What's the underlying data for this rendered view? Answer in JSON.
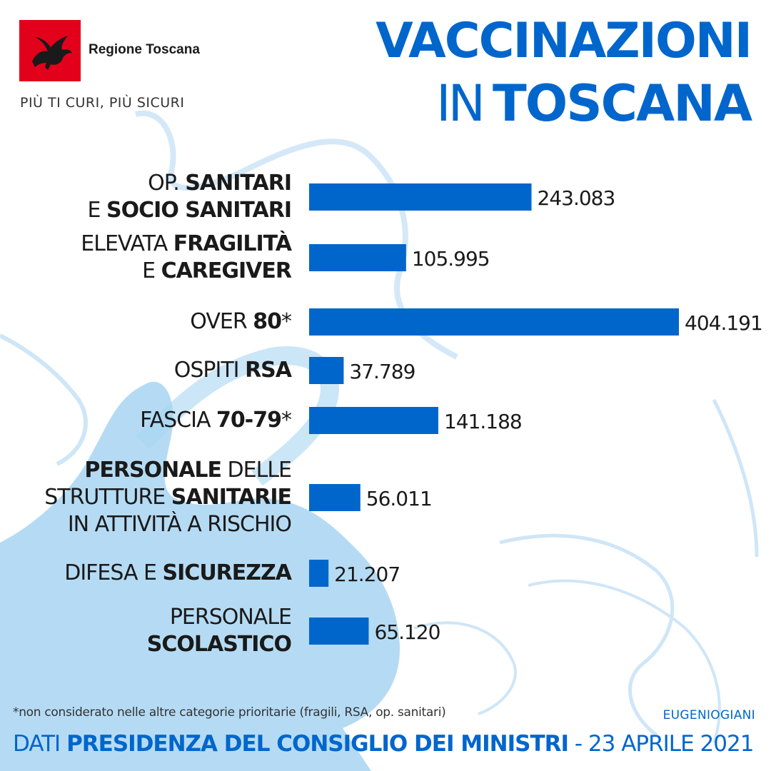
{
  "header": {
    "logo_text": "Regione Toscana",
    "tagline": "PIÙ TI CURI, PIÙ SICURI",
    "title_line1": "VACCINAZIONI",
    "title_line2_light": "IN",
    "title_line2_bold": "TOSCANA"
  },
  "categories": [
    {
      "lines": [
        [
          [
            "l",
            "OP. "
          ],
          [
            "b",
            "SANITARI"
          ]
        ],
        [
          [
            "l",
            "E "
          ],
          [
            "b",
            "SOCIO SANITARI"
          ]
        ]
      ]
    },
    {
      "lines": [
        [
          [
            "l",
            "ELEVATA "
          ],
          [
            "b",
            "FRAGILITÀ"
          ]
        ],
        [
          [
            "l",
            "E "
          ],
          [
            "b",
            "CAREGIVER"
          ]
        ]
      ]
    },
    {
      "lines": [
        [
          [
            "l",
            "OVER "
          ],
          [
            "b",
            "80"
          ],
          [
            "l",
            "*"
          ]
        ]
      ]
    },
    {
      "lines": [
        [
          [
            "l",
            "OSPITI "
          ],
          [
            "b",
            "RSA"
          ]
        ]
      ]
    },
    {
      "lines": [
        [
          [
            "l",
            "FASCIA "
          ],
          [
            "b",
            "70-79"
          ],
          [
            "l",
            "*"
          ]
        ]
      ]
    },
    {
      "lines": [
        [
          [
            "b",
            "PERSONALE"
          ],
          [
            "l",
            " DELLE"
          ]
        ],
        [
          [
            "l",
            "STRUTTURE "
          ],
          [
            "b",
            "SANITARIE"
          ]
        ],
        [
          [
            "l",
            "IN ATTIVITÀ A RISCHIO"
          ]
        ]
      ]
    },
    {
      "lines": [
        [
          [
            "l",
            "DIFESA E "
          ],
          [
            "b",
            "SICUREZZA"
          ]
        ]
      ]
    },
    {
      "lines": [
        [
          [
            "l",
            "PERSONALE"
          ]
        ],
        [
          [
            "b",
            "SCOLASTICO"
          ]
        ]
      ]
    }
  ],
  "chart_data": {
    "type": "bar",
    "orientation": "horizontal",
    "categories": [
      "OP. SANITARI E SOCIO SANITARI",
      "ELEVATA FRAGILITÀ E CAREGIVER",
      "OVER 80*",
      "OSPITI RSA",
      "FASCIA 70-79*",
      "PERSONALE DELLE STRUTTURE SANITARIE IN ATTIVITÀ A RISCHIO",
      "DIFESA E SICUREZZA",
      "PERSONALE SCOLASTICO"
    ],
    "values": [
      243083,
      105995,
      404191,
      37789,
      141188,
      56011,
      21207,
      65120
    ],
    "value_labels": [
      "243.083",
      "105.995",
      "404.191",
      "37.789",
      "141.188",
      "56.011",
      "21.207",
      "65.120"
    ],
    "bar_color": "#0066cc",
    "title": "VACCINAZIONI IN TOSCANA",
    "xlabel": "",
    "ylabel": ""
  },
  "footer": {
    "footnote": "*non considerato nelle altre categorie prioritarie (fragili, RSA, op. sanitari)",
    "credit": "EUGENIOGIANI",
    "source_light": "DATI ",
    "source_bold": "PRESIDENZA DEL CONSIGLIO DEI MINISTRI",
    "source_date": " - 23 APRILE 2021"
  },
  "colors": {
    "accent": "#0066cc",
    "logo_red": "#e3001b",
    "watermark": "#9fd0ef"
  }
}
